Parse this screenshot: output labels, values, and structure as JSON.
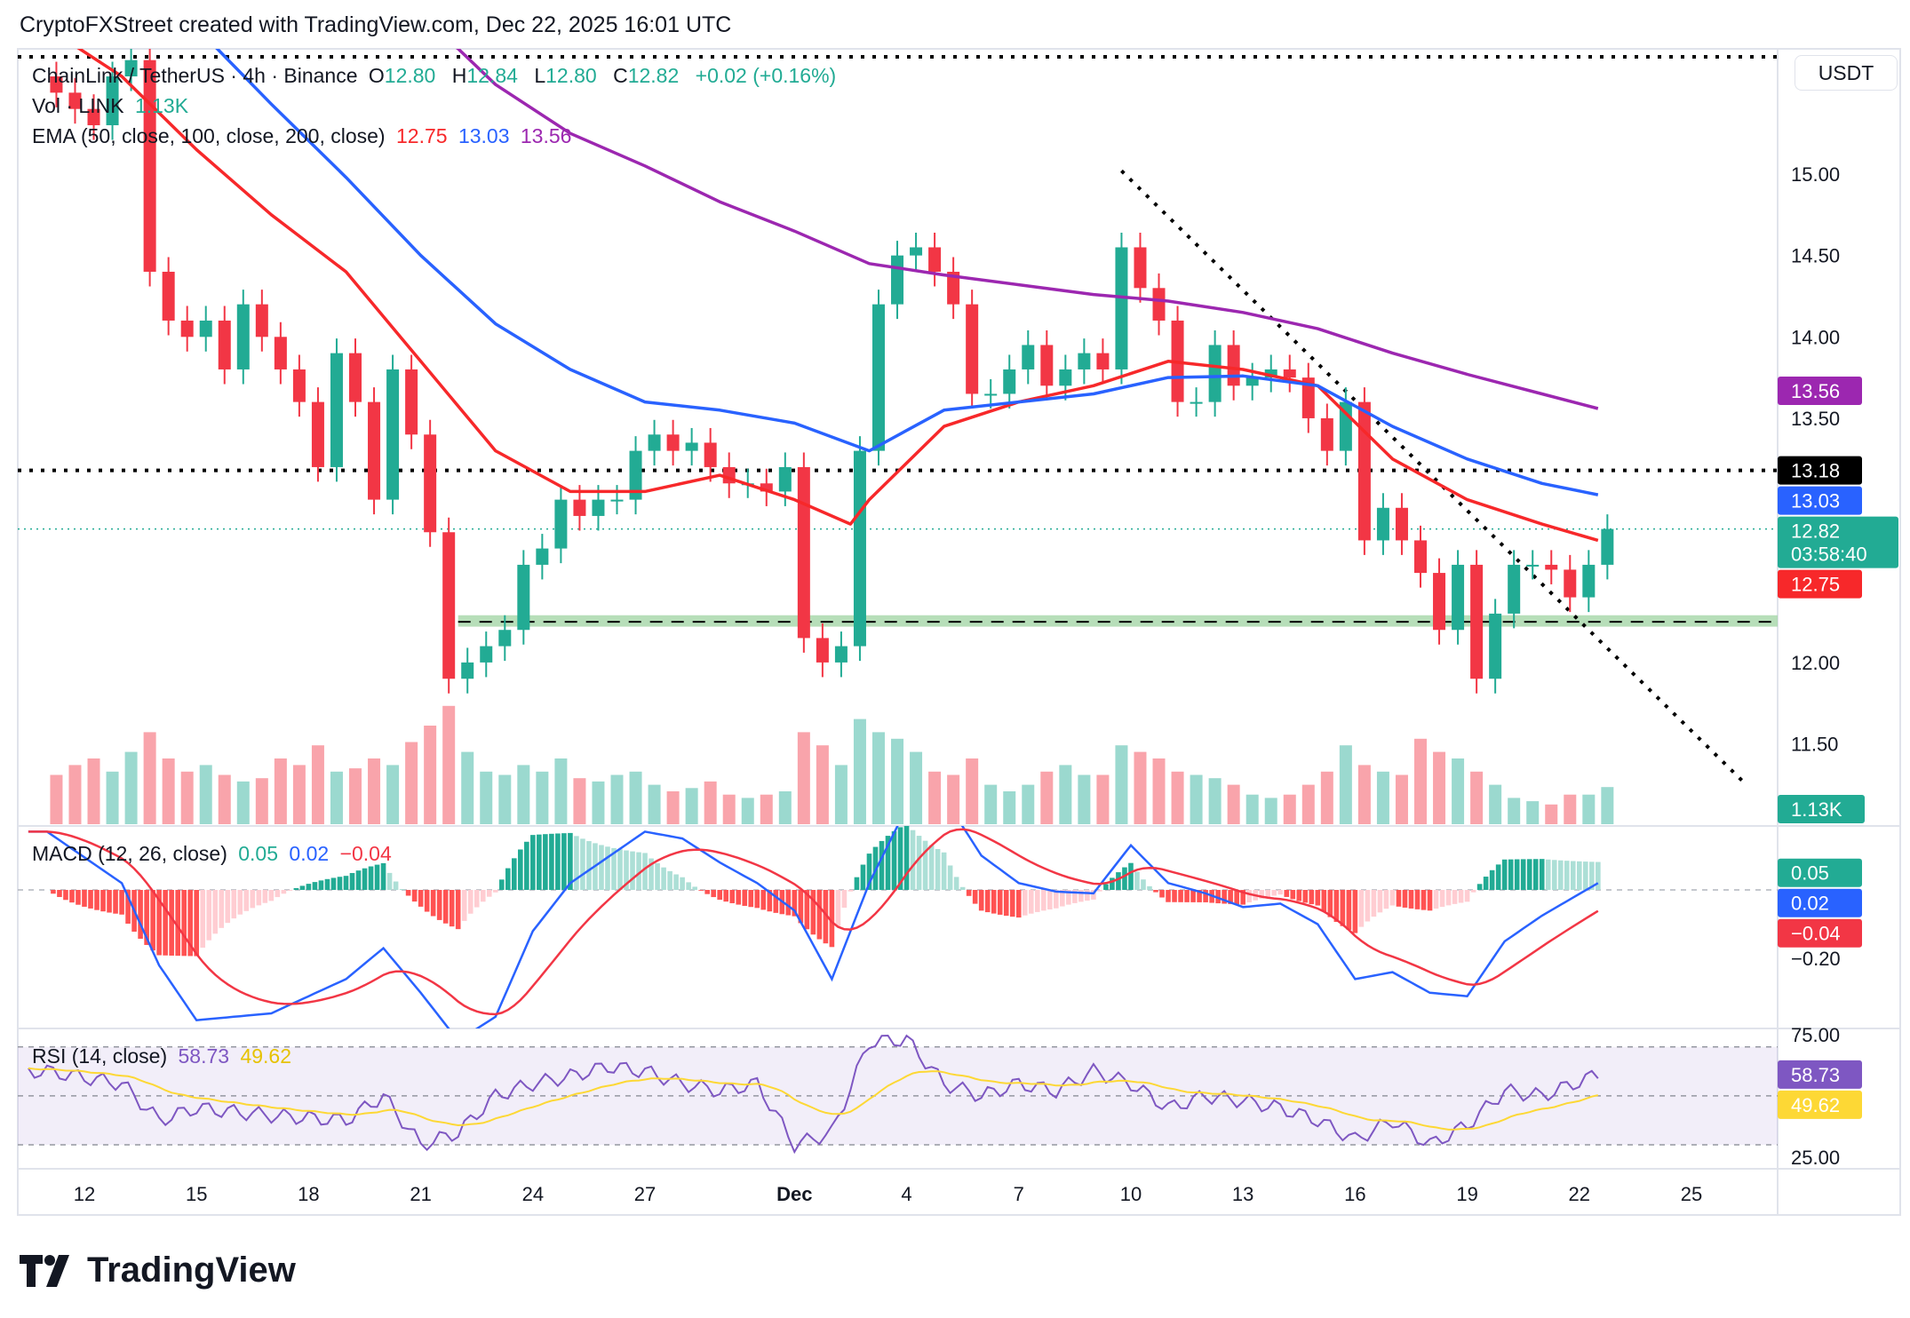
{
  "header": {
    "attribution": "CryptoFXStreet created with TradingView.com, Dec 22, 2025 16:01 UTC"
  },
  "legend": {
    "symbol": "ChainLink / TetherUS · 4h · Binance",
    "o_label": "O",
    "o": "12.80",
    "h_label": "H",
    "h": "12.84",
    "l_label": "L",
    "l": "12.80",
    "c_label": "C",
    "c": "12.82",
    "change": "+0.02 (+0.16%)",
    "vol_label": "Vol · LINK",
    "vol": "1.13K",
    "ema_label": "EMA (50, close, 100, close, 200, close)",
    "ema50": "12.75",
    "ema100": "13.03",
    "ema200": "13.56",
    "macd_label": "MACD (12, 26, close)",
    "macd_hist": "0.05",
    "macd": "0.02",
    "macd_signal": "−0.04",
    "rsi_label": "RSI (14, close)",
    "rsi": "58.73",
    "rsi_ma": "49.62"
  },
  "axis": {
    "currency": "USDT",
    "price_ticks": [
      {
        "label": "15.00",
        "value": 15
      },
      {
        "label": "14.50",
        "value": 14.5
      },
      {
        "label": "14.00",
        "value": 14
      },
      {
        "label": "13.50",
        "value": 13.5
      },
      {
        "label": "12.00",
        "value": 12
      },
      {
        "label": "11.50",
        "value": 11.5
      }
    ],
    "macd_ticks": [
      {
        "label": "−0.20",
        "value": -0.2
      }
    ],
    "rsi_ticks": [
      {
        "label": "75.00",
        "value": 75
      },
      {
        "label": "25.00",
        "value": 25
      }
    ],
    "x_ticks": [
      {
        "label": "12",
        "date": "2025-11-12"
      },
      {
        "label": "15",
        "date": "2025-11-15"
      },
      {
        "label": "18",
        "date": "2025-11-18"
      },
      {
        "label": "21",
        "date": "2025-11-21"
      },
      {
        "label": "24",
        "date": "2025-11-24"
      },
      {
        "label": "27",
        "date": "2025-11-27"
      },
      {
        "label": "Dec",
        "date": "2025-12-01",
        "bold": true
      },
      {
        "label": "4",
        "date": "2025-12-04"
      },
      {
        "label": "7",
        "date": "2025-12-07"
      },
      {
        "label": "10",
        "date": "2025-12-10"
      },
      {
        "label": "13",
        "date": "2025-12-13"
      },
      {
        "label": "16",
        "date": "2025-12-16"
      },
      {
        "label": "19",
        "date": "2025-12-19"
      },
      {
        "label": "22",
        "date": "2025-12-22"
      },
      {
        "label": "25",
        "date": "2025-12-25"
      }
    ],
    "badges": [
      {
        "label": "13.56",
        "value": 13.56,
        "color": "#9c27b0",
        "pane": "price"
      },
      {
        "label": "13.18",
        "value": 13.18,
        "color": "#000000",
        "pane": "price"
      },
      {
        "label": "13.03",
        "value": 13.03,
        "color": "#2962ff",
        "pane": "price"
      },
      {
        "label": "12.82",
        "sub": "03:58:40",
        "value": 12.82,
        "color": "#22ab94",
        "pane": "price"
      },
      {
        "label": "12.75",
        "value": 12.75,
        "color": "#f7282a",
        "pane": "price"
      },
      {
        "label": "1.13K",
        "value": null,
        "color": "#22ab94",
        "pane": "volume"
      },
      {
        "label": "0.05",
        "value": 0.05,
        "color": "#22ab94",
        "pane": "macd"
      },
      {
        "label": "0.02",
        "value": -0.03,
        "color": "#2962ff",
        "pane": "macd"
      },
      {
        "label": "−0.04",
        "value": -0.09,
        "color": "#f23645",
        "pane": "macd"
      },
      {
        "label": "58.73",
        "value": 58.73,
        "color": "#7e57c2",
        "pane": "rsi"
      },
      {
        "label": "49.62",
        "value": 49.62,
        "color": "#fdd835",
        "text": "#131722",
        "pane": "rsi"
      }
    ]
  },
  "colors": {
    "up": "#22ab94",
    "down": "#f23645",
    "ema50": "#f7282a",
    "ema100": "#2962ff",
    "ema200": "#9c27b0",
    "rsi": "#7e57c2",
    "rsi_ma": "#fdd835",
    "zone": "#a5d6a7"
  },
  "chart_data": {
    "type": "candlestick",
    "symbol": "LINK/USDT",
    "ylim": [
      11.2,
      15.8
    ],
    "candles": {
      "start": "2025-11-11",
      "interval_hours": 12,
      "closes": [
        15.5,
        15.4,
        15.3,
        15.6,
        15.7,
        14.4,
        14.1,
        14.0,
        14.1,
        13.8,
        14.2,
        14.0,
        13.8,
        13.6,
        13.2,
        13.9,
        13.6,
        13.0,
        13.8,
        13.4,
        12.8,
        11.9,
        12.0,
        12.1,
        12.2,
        12.6,
        12.7,
        13.0,
        12.9,
        13.0,
        13.0,
        13.3,
        13.4,
        13.3,
        13.35,
        13.2,
        13.1,
        13.1,
        13.05,
        13.2,
        12.15,
        12.0,
        12.1,
        13.3,
        14.2,
        14.5,
        14.55,
        14.4,
        14.2,
        13.65,
        13.65,
        13.8,
        13.95,
        13.7,
        13.8,
        13.9,
        13.8,
        14.55,
        14.3,
        14.1,
        13.6,
        13.6,
        13.95,
        13.7,
        13.75,
        13.8,
        13.75,
        13.5,
        13.3,
        13.6,
        12.75,
        12.95,
        12.75,
        12.55,
        12.2,
        12.6,
        11.9,
        12.3,
        12.6,
        12.6,
        12.57,
        12.4,
        12.6,
        12.82
      ],
      "volume_k": [
        1.5,
        1.8,
        2.0,
        1.6,
        2.2,
        2.8,
        2.0,
        1.6,
        1.8,
        1.5,
        1.3,
        1.4,
        2.0,
        1.8,
        2.4,
        1.6,
        1.7,
        2.0,
        1.8,
        2.5,
        3.0,
        3.6,
        2.2,
        1.6,
        1.5,
        1.8,
        1.6,
        2.0,
        1.4,
        1.3,
        1.5,
        1.6,
        1.2,
        1.0,
        1.1,
        1.3,
        0.9,
        0.8,
        0.9,
        1.0,
        2.8,
        2.4,
        1.8,
        3.2,
        2.8,
        2.6,
        2.2,
        1.6,
        1.5,
        2.0,
        1.2,
        1.0,
        1.2,
        1.6,
        1.8,
        1.5,
        1.5,
        2.4,
        2.2,
        2.0,
        1.6,
        1.5,
        1.4,
        1.2,
        0.9,
        0.8,
        0.9,
        1.2,
        1.6,
        2.4,
        1.8,
        1.6,
        1.5,
        2.6,
        2.2,
        2.0,
        1.6,
        1.2,
        0.8,
        0.7,
        0.6,
        0.9,
        0.9,
        1.13
      ]
    },
    "ema50": [
      [
        "2025-11-11",
        15.9
      ],
      [
        "2025-11-13",
        15.6
      ],
      [
        "2025-11-15",
        15.15
      ],
      [
        "2025-11-17",
        14.75
      ],
      [
        "2025-11-19",
        14.4
      ],
      [
        "2025-11-21",
        13.85
      ],
      [
        "2025-11-23",
        13.3
      ],
      [
        "2025-11-25",
        13.05
      ],
      [
        "2025-11-27",
        13.05
      ],
      [
        "2025-11-29",
        13.15
      ],
      [
        "2025-12-01",
        13.0
      ],
      [
        "2025-12-02T12:00",
        12.85
      ],
      [
        "2025-12-03",
        13.0
      ],
      [
        "2025-12-05",
        13.45
      ],
      [
        "2025-12-07",
        13.6
      ],
      [
        "2025-12-09",
        13.7
      ],
      [
        "2025-12-11",
        13.85
      ],
      [
        "2025-12-13",
        13.8
      ],
      [
        "2025-12-15",
        13.7
      ],
      [
        "2025-12-17",
        13.25
      ],
      [
        "2025-12-19",
        13.0
      ],
      [
        "2025-12-21",
        12.85
      ],
      [
        "2025-12-22T12:00",
        12.75
      ]
    ],
    "ema100": [
      [
        "2025-11-15",
        15.9
      ],
      [
        "2025-11-17",
        15.43
      ],
      [
        "2025-11-19",
        14.98
      ],
      [
        "2025-11-21",
        14.5
      ],
      [
        "2025-11-23",
        14.08
      ],
      [
        "2025-11-25",
        13.8
      ],
      [
        "2025-11-27",
        13.6
      ],
      [
        "2025-11-29",
        13.55
      ],
      [
        "2025-12-01",
        13.47
      ],
      [
        "2025-12-03",
        13.3
      ],
      [
        "2025-12-05",
        13.55
      ],
      [
        "2025-12-07",
        13.6
      ],
      [
        "2025-12-09",
        13.65
      ],
      [
        "2025-12-11",
        13.75
      ],
      [
        "2025-12-13",
        13.76
      ],
      [
        "2025-12-15",
        13.7
      ],
      [
        "2025-12-17",
        13.45
      ],
      [
        "2025-12-19",
        13.25
      ],
      [
        "2025-12-21",
        13.1
      ],
      [
        "2025-12-22T12:00",
        13.03
      ]
    ],
    "ema200": [
      [
        "2025-11-21",
        15.95
      ],
      [
        "2025-11-22",
        15.77
      ],
      [
        "2025-11-23",
        15.55
      ],
      [
        "2025-11-25",
        15.25
      ],
      [
        "2025-11-27",
        15.05
      ],
      [
        "2025-11-29",
        14.83
      ],
      [
        "2025-12-01",
        14.65
      ],
      [
        "2025-12-03",
        14.45
      ],
      [
        "2025-12-05",
        14.38
      ],
      [
        "2025-12-07",
        14.32
      ],
      [
        "2025-12-09",
        14.26
      ],
      [
        "2025-12-11",
        14.22
      ],
      [
        "2025-12-13",
        14.15
      ],
      [
        "2025-12-15",
        14.05
      ],
      [
        "2025-12-17",
        13.9
      ],
      [
        "2025-12-19",
        13.77
      ],
      [
        "2025-12-21",
        13.65
      ],
      [
        "2025-12-22T12:00",
        13.56
      ]
    ],
    "resistance": 13.18,
    "upper_level": 15.72,
    "support_zone": [
      12.22,
      12.29
    ],
    "support_line": 12.25,
    "trendline": [
      [
        "2025-12-09T18:00",
        15.02
      ],
      [
        "2025-12-26T10:00",
        11.26
      ]
    ],
    "macd": [
      [
        "2025-11-11",
        0.17
      ],
      [
        "2025-11-13",
        0.02
      ],
      [
        "2025-11-14",
        -0.22
      ],
      [
        "2025-11-15",
        -0.38
      ],
      [
        "2025-11-17",
        -0.36
      ],
      [
        "2025-11-18",
        -0.31
      ],
      [
        "2025-11-19",
        -0.26
      ],
      [
        "2025-11-20",
        -0.17
      ],
      [
        "2025-11-21",
        -0.3
      ],
      [
        "2025-11-22",
        -0.44
      ],
      [
        "2025-11-23",
        -0.37
      ],
      [
        "2025-11-24",
        -0.12
      ],
      [
        "2025-11-25",
        0.02
      ],
      [
        "2025-11-27",
        0.17
      ],
      [
        "2025-11-28",
        0.15
      ],
      [
        "2025-11-29",
        0.08
      ],
      [
        "2025-11-30",
        0.02
      ],
      [
        "2025-12-01",
        -0.06
      ],
      [
        "2025-12-02",
        -0.26
      ],
      [
        "2025-12-03",
        0.02
      ],
      [
        "2025-12-04",
        0.24
      ],
      [
        "2025-12-05",
        0.27
      ],
      [
        "2025-12-06",
        0.1
      ],
      [
        "2025-12-07",
        0.02
      ],
      [
        "2025-12-08",
        -0.005
      ],
      [
        "2025-12-09",
        -0.01
      ],
      [
        "2025-12-10",
        0.13
      ],
      [
        "2025-12-11",
        0.02
      ],
      [
        "2025-12-12",
        -0.01
      ],
      [
        "2025-12-13",
        -0.05
      ],
      [
        "2025-12-14",
        -0.04
      ],
      [
        "2025-12-15",
        -0.1
      ],
      [
        "2025-12-16",
        -0.26
      ],
      [
        "2025-12-17",
        -0.24
      ],
      [
        "2025-12-18",
        -0.3
      ],
      [
        "2025-12-19",
        -0.31
      ],
      [
        "2025-12-20",
        -0.15
      ],
      [
        "2025-12-21",
        -0.075
      ],
      [
        "2025-12-22T12:00",
        0.02
      ]
    ],
    "rsi": [
      [
        "2025-11-11",
        60
      ],
      [
        "2025-11-13",
        55
      ],
      [
        "2025-11-14",
        40
      ],
      [
        "2025-11-15",
        45
      ],
      [
        "2025-11-17",
        42
      ],
      [
        "2025-11-19",
        40
      ],
      [
        "2025-11-20",
        50
      ],
      [
        "2025-11-21",
        30
      ],
      [
        "2025-11-22",
        35
      ],
      [
        "2025-11-23",
        50
      ],
      [
        "2025-11-24",
        55
      ],
      [
        "2025-11-25",
        58
      ],
      [
        "2025-11-26",
        62
      ],
      [
        "2025-11-27",
        60
      ],
      [
        "2025-11-28",
        55
      ],
      [
        "2025-11-29",
        52
      ],
      [
        "2025-11-30",
        55
      ],
      [
        "2025-12-01",
        30
      ],
      [
        "2025-12-02",
        35
      ],
      [
        "2025-12-03",
        72
      ],
      [
        "2025-12-04",
        73
      ],
      [
        "2025-12-05",
        55
      ],
      [
        "2025-12-06",
        50
      ],
      [
        "2025-12-07",
        55
      ],
      [
        "2025-12-08",
        52
      ],
      [
        "2025-12-09",
        60
      ],
      [
        "2025-12-10",
        55
      ],
      [
        "2025-12-11",
        45
      ],
      [
        "2025-12-12",
        50
      ],
      [
        "2025-12-13",
        48
      ],
      [
        "2025-12-14",
        45
      ],
      [
        "2025-12-15",
        40
      ],
      [
        "2025-12-16",
        32
      ],
      [
        "2025-12-17",
        40
      ],
      [
        "2025-12-18",
        30
      ],
      [
        "2025-12-19",
        38
      ],
      [
        "2025-12-20",
        52
      ],
      [
        "2025-12-21",
        50
      ],
      [
        "2025-12-22T12:00",
        58.73
      ]
    ],
    "rsi_levels": [
      70,
      50,
      30
    ],
    "grid": false,
    "legend": "top-left"
  },
  "logo": {
    "text": "TradingView"
  }
}
